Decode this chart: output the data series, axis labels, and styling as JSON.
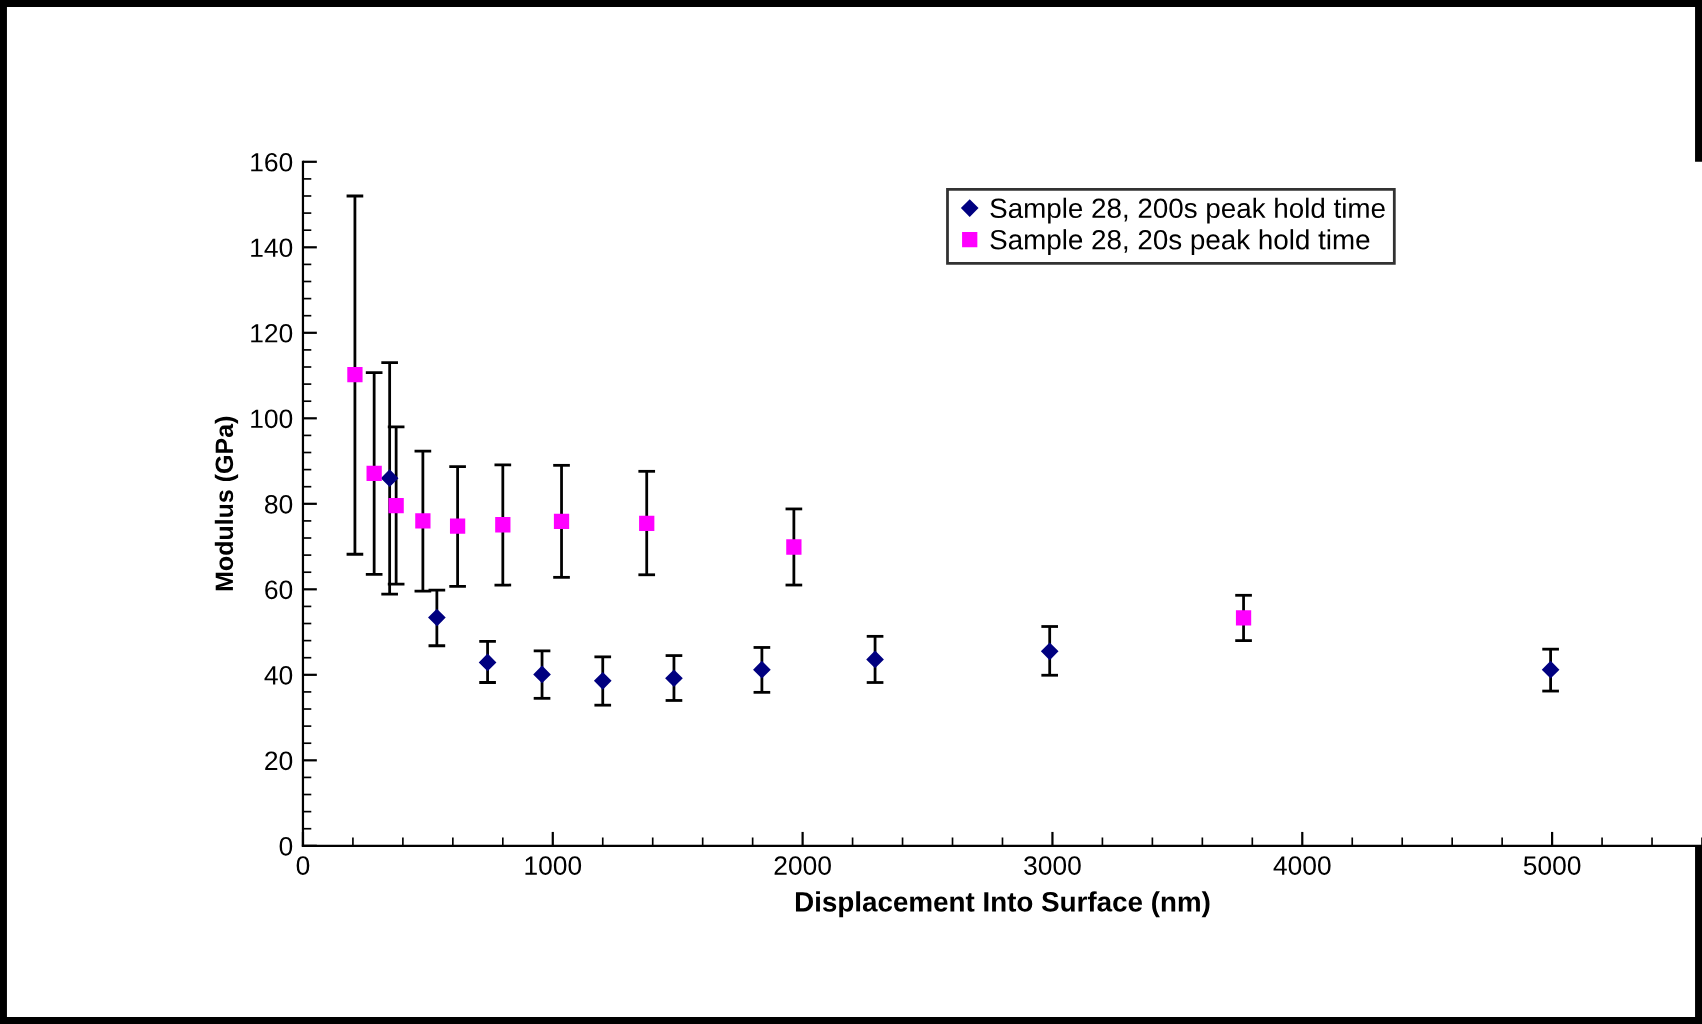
{
  "chart_data": {
    "type": "scatter",
    "xlabel": "Displacement Into Surface (nm)",
    "ylabel": "Modulus (GPa)",
    "xlim": [
      0,
      5600
    ],
    "xticks": [
      0,
      1000,
      2000,
      3000,
      4000,
      5000
    ],
    "ylim": [
      0,
      160
    ],
    "yticks": [
      0,
      20,
      40,
      60,
      80,
      100,
      120,
      140,
      160
    ],
    "grid": false,
    "legend": "top right",
    "series": [
      {
        "name": "Sample 28, 200s peak hold time",
        "color": "#000080",
        "marker": "diamond",
        "x": [
          347,
          536,
          739,
          957,
          1200,
          1485,
          1837,
          2290,
          2989,
          4994
        ],
        "values": [
          86.0,
          53.4,
          42.9,
          40.1,
          38.6,
          39.2,
          41.2,
          43.6,
          45.5,
          41.2
        ],
        "errors": [
          [
            58.9,
            113.0
          ],
          [
            46.8,
            59.8
          ],
          [
            38.2,
            47.8
          ],
          [
            34.5,
            45.6
          ],
          [
            32.9,
            44.2
          ],
          [
            34.0,
            44.5
          ],
          [
            35.9,
            46.4
          ],
          [
            38.2,
            49.0
          ],
          [
            39.9,
            51.3
          ],
          [
            36.2,
            46.0
          ]
        ]
      },
      {
        "name": "Sample 28, 20s peak hold time",
        "color": "#ff00ff",
        "marker": "square",
        "x": [
          208,
          285,
          373,
          480,
          619,
          800,
          1035,
          1376,
          1965,
          3765
        ],
        "values": [
          110.2,
          87.1,
          79.6,
          76.0,
          74.8,
          75.1,
          75.9,
          75.4,
          69.9,
          53.3
        ],
        "errors": [
          [
            68.2,
            152.0
          ],
          [
            63.5,
            110.7
          ],
          [
            61.2,
            98.0
          ],
          [
            59.6,
            92.3
          ],
          [
            60.7,
            88.7
          ],
          [
            61.0,
            89.1
          ],
          [
            62.8,
            89.0
          ],
          [
            63.4,
            87.6
          ],
          [
            61.0,
            78.8
          ],
          [
            48.0,
            58.6
          ]
        ]
      }
    ]
  }
}
